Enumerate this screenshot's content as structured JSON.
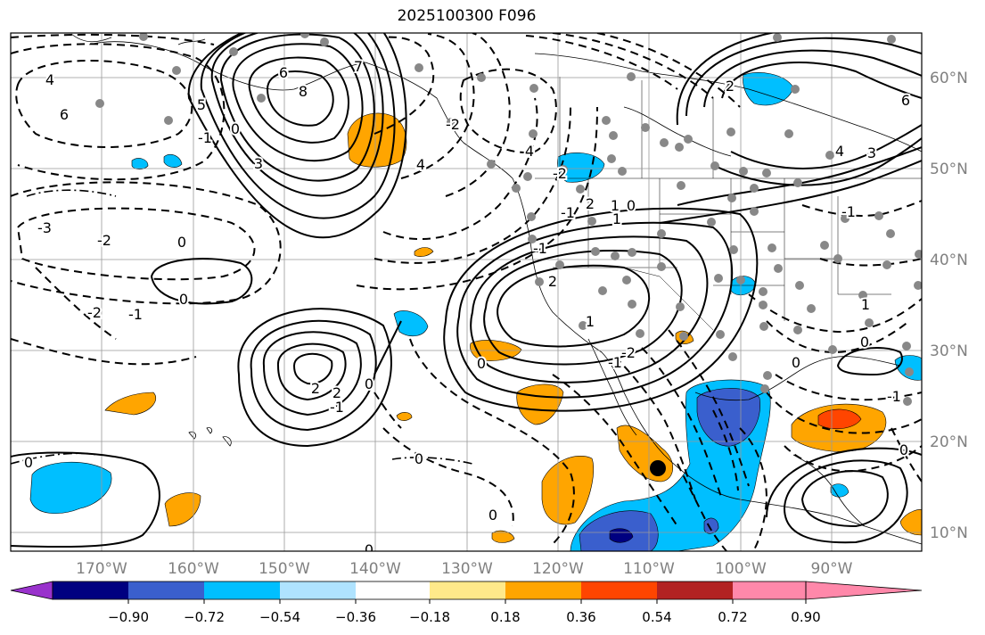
{
  "title": "2025100300 F096",
  "map": {
    "lon_ticks": [
      "170°W",
      "160°W",
      "150°W",
      "140°W",
      "130°W",
      "120°W",
      "110°W",
      "100°W",
      "90°W"
    ],
    "lat_ticks": [
      "60°N",
      "50°N",
      "40°N",
      "30°N",
      "20°N",
      "10°N"
    ],
    "contour_labels": [
      "4",
      "6",
      "-3",
      "-2",
      "0",
      "-2",
      "-1",
      "0",
      "6",
      "8",
      "3",
      "7",
      "4",
      "5",
      "4",
      "-1",
      "2",
      "1",
      "0",
      "-2",
      "-2",
      "1",
      "-1",
      "0",
      "-1",
      "2",
      "2",
      "-1",
      "2",
      "0",
      "0",
      "0",
      "0",
      "1",
      "2",
      "6",
      "3",
      "4",
      "-2",
      "-1",
      "0",
      "0",
      "-1",
      "1",
      "-1",
      "0",
      "0",
      "0"
    ],
    "colors": {
      "contour": "#000000",
      "grid": "#999999",
      "station": "#888888",
      "orange": "#ffa500",
      "red": "#ff4500",
      "light_blue": "#00bfff",
      "blue": "#3355cc",
      "navy": "#000080",
      "tick_label": "#808080"
    }
  },
  "colorbar": {
    "labels": [
      "−0.90",
      "−0.72",
      "−0.54",
      "−0.36",
      "−0.18",
      "0.18",
      "0.36",
      "0.54",
      "0.72",
      "0.90"
    ],
    "colors": [
      "#9932cc",
      "#000080",
      "#3a5fcd",
      "#00bfff",
      "#afe3ff",
      "#ffffff",
      "#ffe98a",
      "#ffa500",
      "#ff4500",
      "#b22222",
      "#ff88aa"
    ]
  }
}
